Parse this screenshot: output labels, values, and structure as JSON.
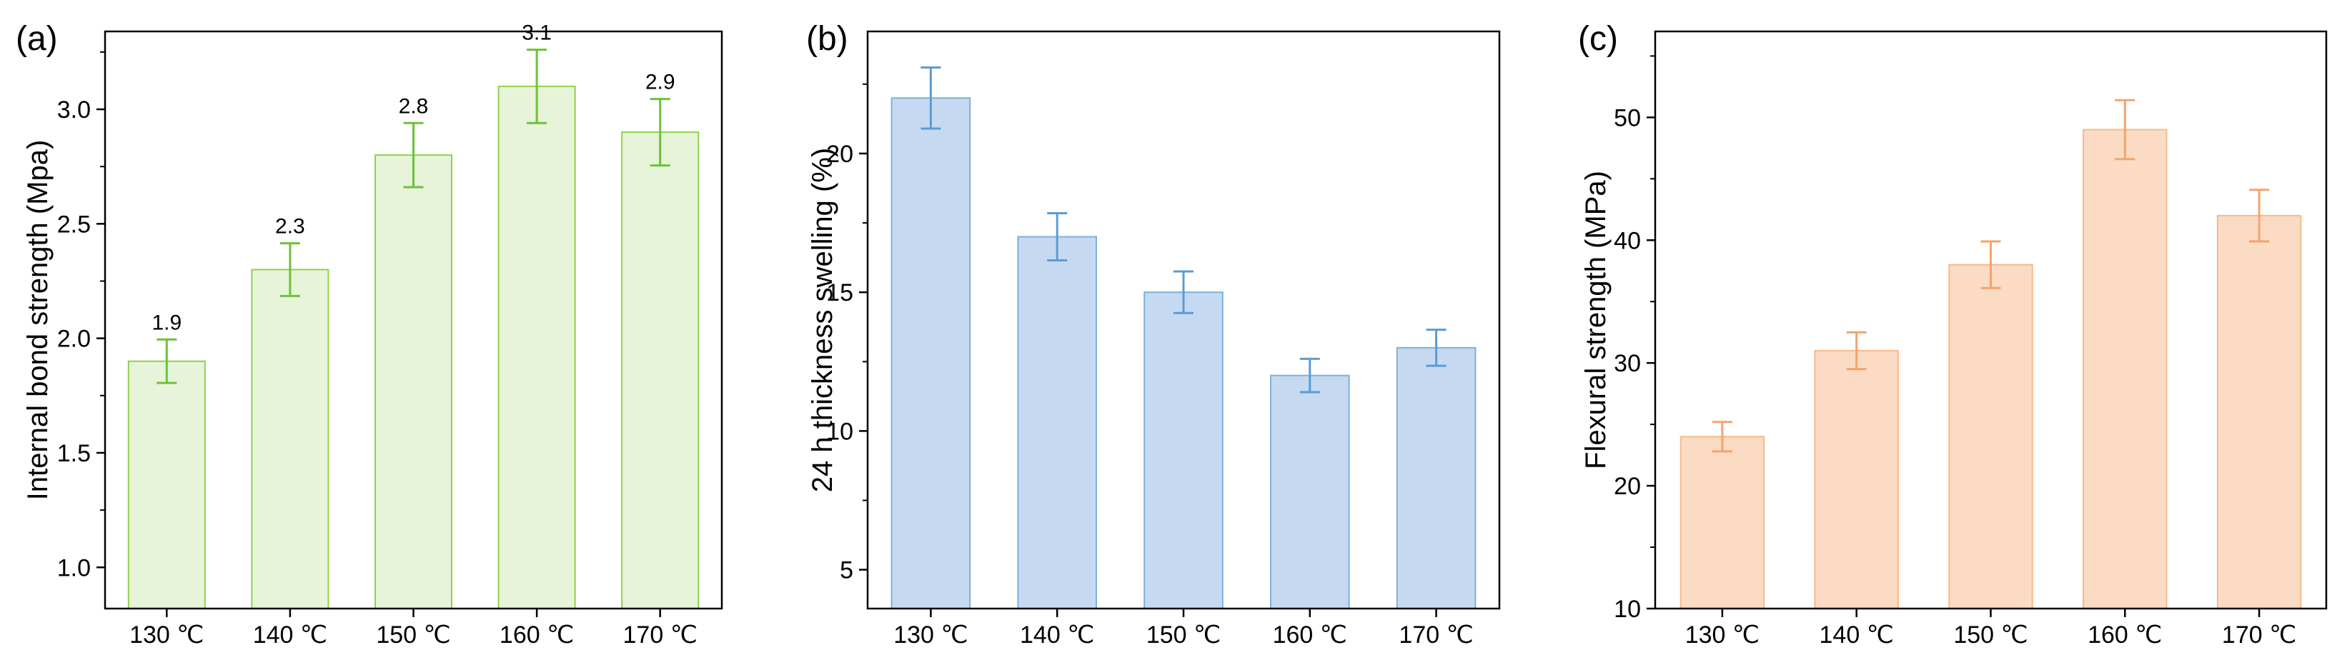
{
  "chart_data": [
    {
      "panel_label": "(a)",
      "type": "bar",
      "categories": [
        "130 ℃",
        "140 ℃",
        "150 ℃",
        "160 ℃",
        "170 ℃"
      ],
      "values": [
        1.9,
        2.3,
        2.8,
        3.1,
        2.9
      ],
      "errors": [
        0.095,
        0.115,
        0.14,
        0.16,
        0.145
      ],
      "data_labels": [
        "1.9",
        "2.3",
        "2.8",
        "3.1",
        "2.9"
      ],
      "ylabel": "Internal bond strength (Mpa)",
      "ylim": [
        0.82,
        3.34
      ],
      "yticks": [
        1.0,
        1.5,
        2.0,
        2.5,
        3.0
      ],
      "ytick_labels": [
        "1.0",
        "1.5",
        "2.0",
        "2.5",
        "3.0"
      ],
      "bar_fill": "#e8f4d9",
      "bar_edge": "#8fd14f",
      "error_color": "#6cc23a"
    },
    {
      "panel_label": "(b)",
      "type": "bar",
      "categories": [
        "130 ℃",
        "140 ℃",
        "150 ℃",
        "160 ℃",
        "170 ℃"
      ],
      "values": [
        22,
        17,
        15,
        12,
        13
      ],
      "errors": [
        1.1,
        0.85,
        0.75,
        0.6,
        0.65
      ],
      "ylabel": "24 h thickness swelling (%)",
      "ylim": [
        3.6,
        24.4
      ],
      "yticks": [
        5,
        10,
        15,
        20
      ],
      "ytick_labels": [
        "5",
        "10",
        "15",
        "20"
      ],
      "bar_fill": "#c5daf0",
      "bar_edge": "#7fb0dc",
      "error_color": "#5b9bd5"
    },
    {
      "panel_label": "(c)",
      "type": "bar",
      "categories": [
        "130 ℃",
        "140 ℃",
        "150 ℃",
        "160 ℃",
        "170 ℃"
      ],
      "values": [
        24,
        31,
        38,
        49,
        42
      ],
      "errors": [
        1.2,
        1.5,
        1.9,
        2.4,
        2.1
      ],
      "ylabel": "Flexural strength (MPa)",
      "ylim": [
        10,
        57
      ],
      "yticks": [
        10,
        20,
        30,
        40,
        50
      ],
      "ytick_labels": [
        "10",
        "20",
        "30",
        "40",
        "50"
      ],
      "bar_fill": "#fbdbc4",
      "bar_edge": "#f6b98b",
      "error_color": "#f4a36b"
    }
  ]
}
